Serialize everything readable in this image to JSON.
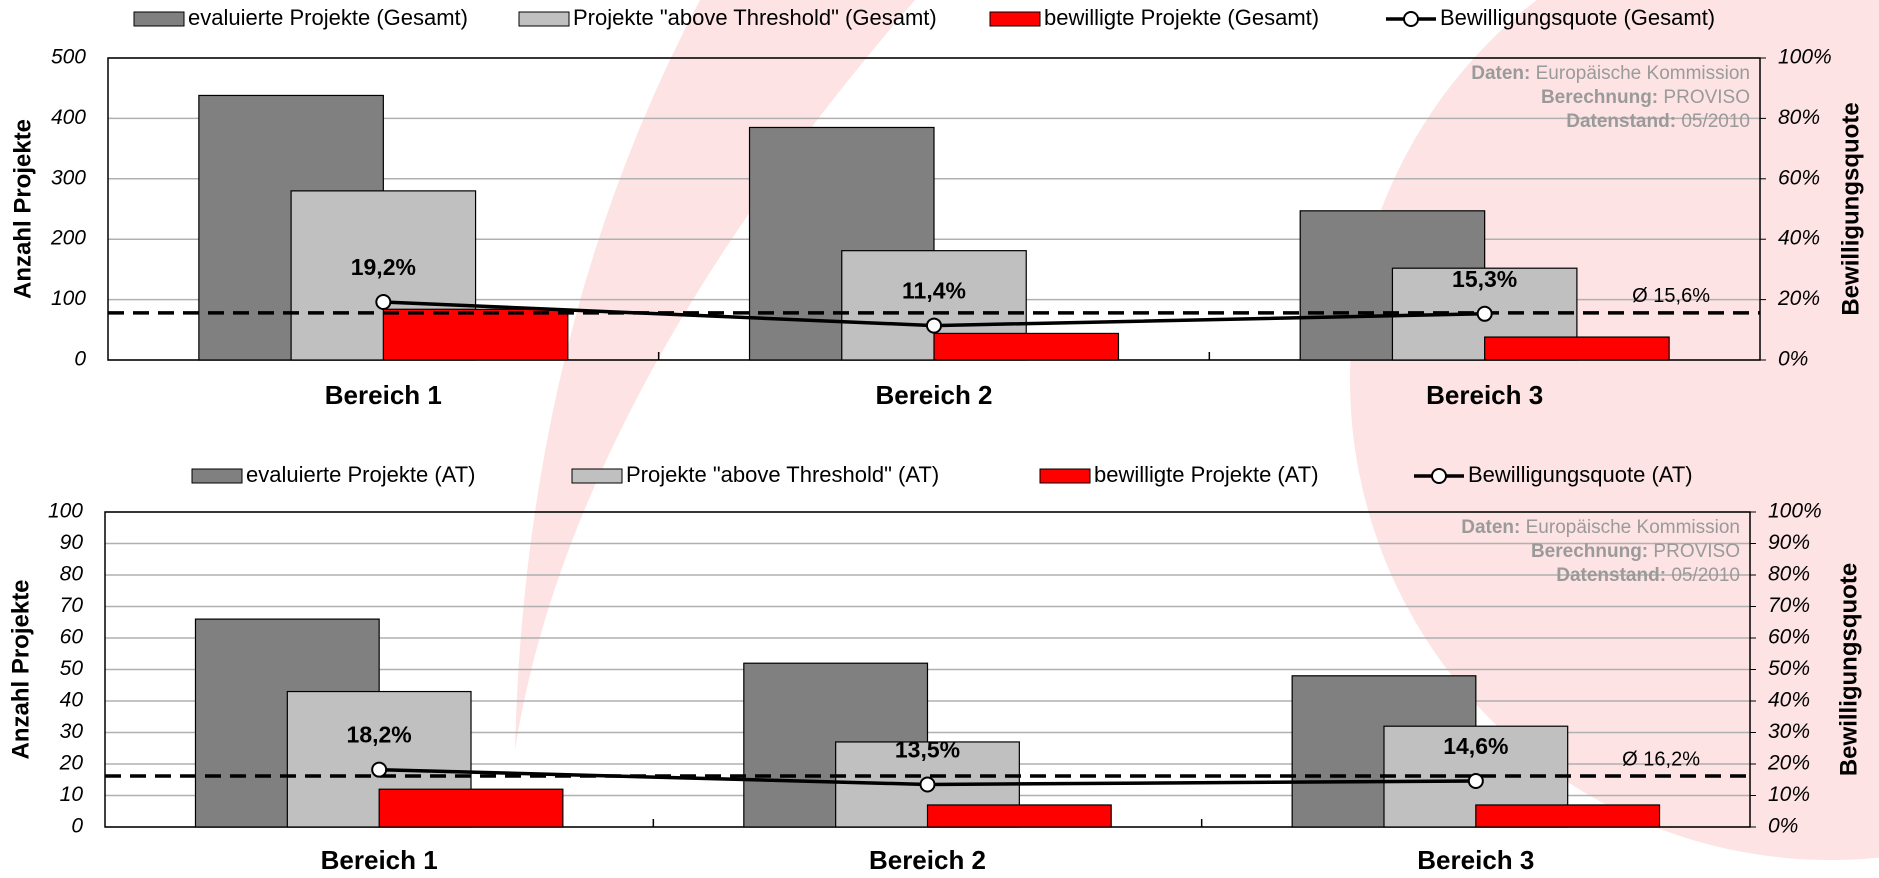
{
  "chart_data": [
    {
      "type": "bar",
      "categories": [
        "Bereich 1",
        "Bereich 2",
        "Bereich 3"
      ],
      "series": [
        {
          "name": "evaluierte Projekte (Gesamt)",
          "color": "#808080",
          "values": [
            438,
            385,
            247
          ]
        },
        {
          "name": "Projekte \"above Threshold\" (Gesamt)",
          "color": "#c0c0c0",
          "values": [
            280,
            181,
            152
          ]
        },
        {
          "name": "bewilligte Projekte (Gesamt)",
          "color": "#ff0000",
          "values": [
            84,
            44,
            38
          ]
        },
        {
          "name": "Bewilligungsquote (Gesamt)",
          "type": "line",
          "axis": "y2",
          "color": "#000000",
          "values": [
            19.2,
            11.4,
            15.3
          ],
          "value_labels": [
            "19,2%",
            "11,4%",
            "15,3%"
          ]
        }
      ],
      "y_label": "Anzahl Projekte",
      "y2_label": "Bewilligungsquote",
      "ylim": [
        0,
        500
      ],
      "yticks": [
        0,
        100,
        200,
        300,
        400,
        500
      ],
      "y2lim": [
        0,
        100
      ],
      "y2ticks": [
        {
          "value": 0,
          "label": "0%"
        },
        {
          "value": 20,
          "label": "20%"
        },
        {
          "value": 40,
          "label": "40%"
        },
        {
          "value": 60,
          "label": "60%"
        },
        {
          "value": 80,
          "label": "80%"
        },
        {
          "value": 100,
          "label": "100%"
        }
      ],
      "reference_line": {
        "value": 15.6,
        "label": "Ø 15,6%",
        "axis": "y2"
      },
      "source": [
        {
          "key": "Daten:",
          "text": "Europäische Kommission"
        },
        {
          "key": "Berechnung:",
          "text": "PROVISO"
        },
        {
          "key": "Datenstand:",
          "text": "05/2010"
        }
      ],
      "grid": true,
      "legend": "top"
    },
    {
      "type": "bar",
      "categories": [
        "Bereich 1",
        "Bereich 2",
        "Bereich 3"
      ],
      "series": [
        {
          "name": "evaluierte Projekte (AT)",
          "color": "#808080",
          "values": [
            66,
            52,
            48
          ]
        },
        {
          "name": "Projekte \"above Threshold\" (AT)",
          "color": "#c0c0c0",
          "values": [
            43,
            27,
            32
          ]
        },
        {
          "name": "bewilligte Projekte (AT)",
          "color": "#ff0000",
          "values": [
            12,
            7,
            7
          ]
        },
        {
          "name": "Bewilligungsquote (AT)",
          "type": "line",
          "axis": "y2",
          "color": "#000000",
          "values": [
            18.2,
            13.5,
            14.6
          ],
          "value_labels": [
            "18,2%",
            "13,5%",
            "14,6%"
          ]
        }
      ],
      "y_label": "Anzahl Projekte",
      "y2_label": "Bewilligungsquote",
      "ylim": [
        0,
        100
      ],
      "yticks": [
        0,
        10,
        20,
        30,
        40,
        50,
        60,
        70,
        80,
        90,
        100
      ],
      "y2lim": [
        0,
        100
      ],
      "y2ticks": [
        {
          "value": 0,
          "label": "0%"
        },
        {
          "value": 10,
          "label": "10%"
        },
        {
          "value": 20,
          "label": "20%"
        },
        {
          "value": 30,
          "label": "30%"
        },
        {
          "value": 40,
          "label": "40%"
        },
        {
          "value": 50,
          "label": "50%"
        },
        {
          "value": 60,
          "label": "60%"
        },
        {
          "value": 70,
          "label": "70%"
        },
        {
          "value": 80,
          "label": "80%"
        },
        {
          "value": 90,
          "label": "90%"
        },
        {
          "value": 100,
          "label": "100%"
        }
      ],
      "reference_line": {
        "value": 16.2,
        "label": "Ø 16,2%",
        "axis": "y2"
      },
      "source": [
        {
          "key": "Daten:",
          "text": "Europäische Kommission"
        },
        {
          "key": "Berechnung:",
          "text": "PROVISO"
        },
        {
          "key": "Datenstand:",
          "text": "05/2010"
        }
      ],
      "grid": true,
      "legend": "top"
    }
  ]
}
